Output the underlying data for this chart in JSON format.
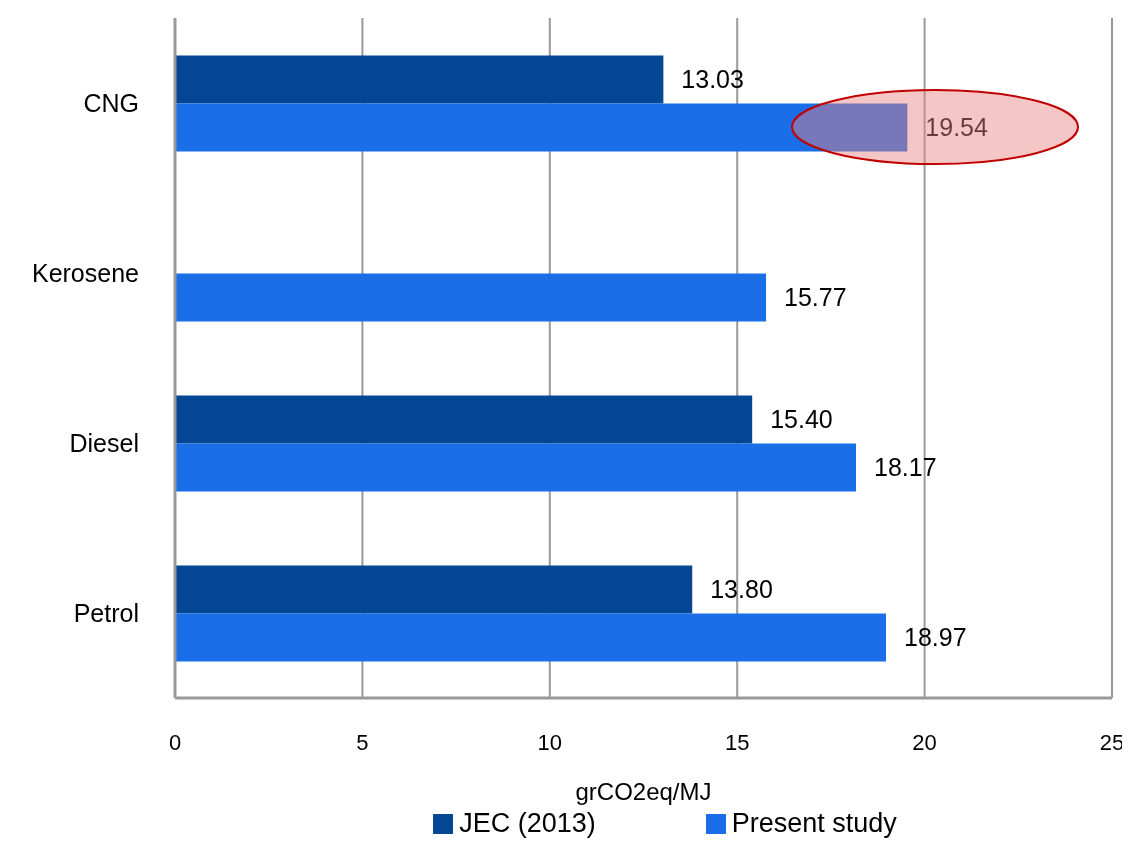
{
  "chart_data": {
    "type": "bar",
    "orientation": "horizontal",
    "xlabel": "grCO2eq/MJ",
    "categories": [
      "CNG",
      "Kerosene",
      "Diesel",
      "Petrol"
    ],
    "series": [
      {
        "name": "JEC (2013)",
        "color": "#034694",
        "values": [
          13.03,
          null,
          15.4,
          13.8
        ],
        "value_labels": [
          "13.03",
          null,
          "15.40",
          "13.80"
        ]
      },
      {
        "name": "Present study",
        "color": "#1a6fe8",
        "values": [
          19.54,
          15.77,
          18.17,
          18.97
        ],
        "value_labels": [
          "19.54",
          "15.77",
          "18.17",
          "18.97"
        ]
      }
    ],
    "xlim": [
      0,
      25
    ],
    "xticks": [
      0,
      5,
      10,
      15,
      20,
      25
    ],
    "grid": "x",
    "legend": "bottom"
  }
}
